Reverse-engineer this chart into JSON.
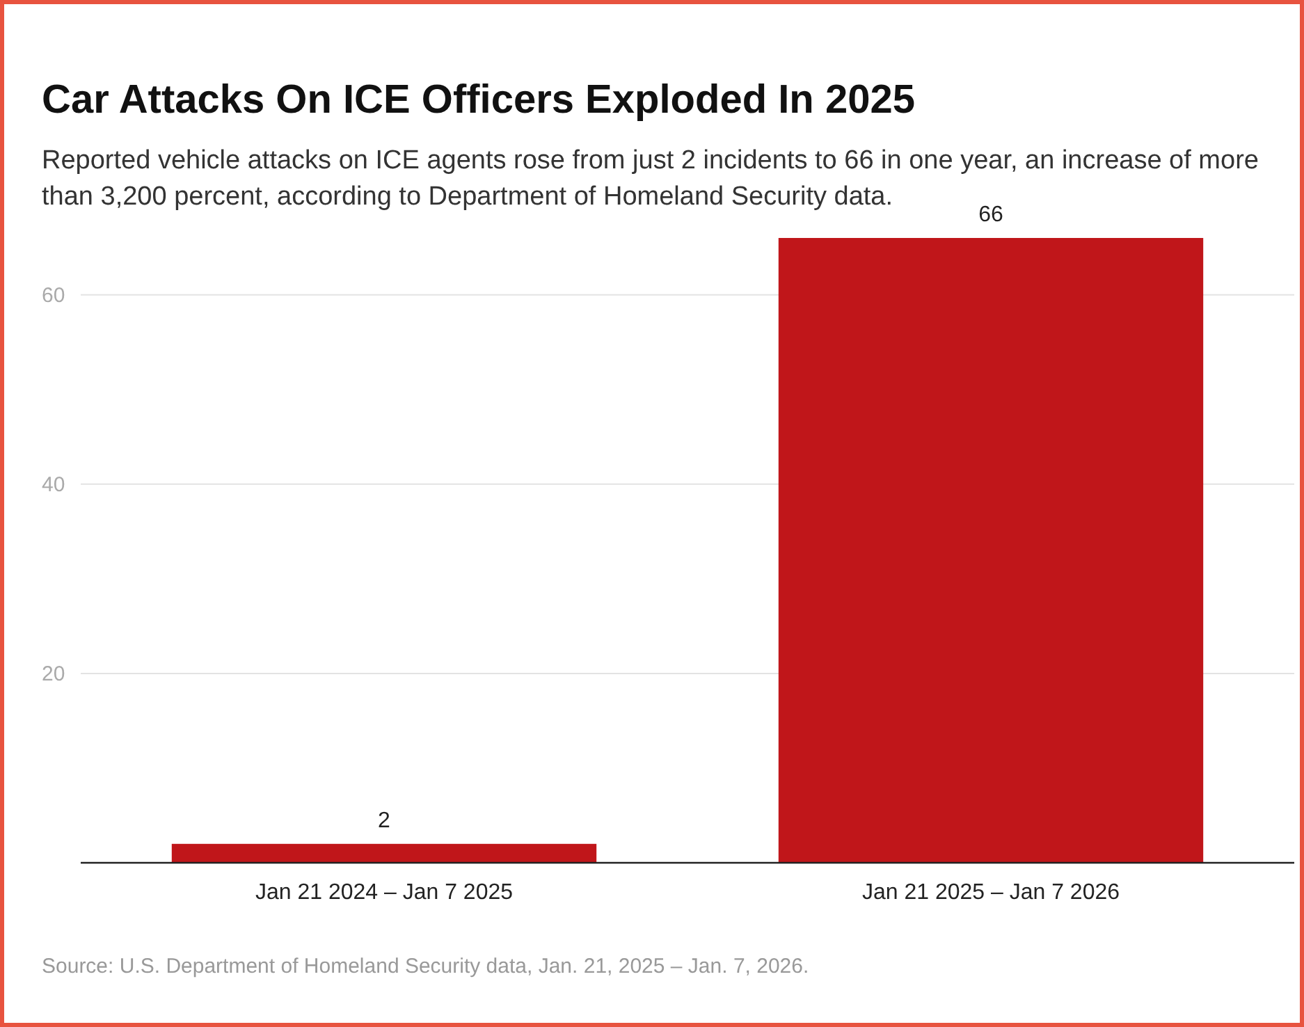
{
  "chart_data": {
    "type": "bar",
    "title": "Car Attacks On ICE Officers Exploded In 2025",
    "subtitle": "Reported vehicle attacks on ICE agents rose from just 2 incidents to 66 in one year, an increase of more than 3,200 percent, according to Department of Homeland Security data.",
    "categories": [
      "Jan 21 2024 – Jan 7 2025",
      "Jan 21 2025 – Jan 7 2026"
    ],
    "values": [
      2,
      66
    ],
    "color": "#c0161a",
    "ylim": [
      0,
      66
    ],
    "yticks": [
      20,
      40,
      60
    ],
    "grid": "y",
    "data_labels": true,
    "annotations": [
      "Source: U.S. Department of Homeland Security data, Jan. 21, 2025 – Jan. 7, 2026."
    ]
  }
}
